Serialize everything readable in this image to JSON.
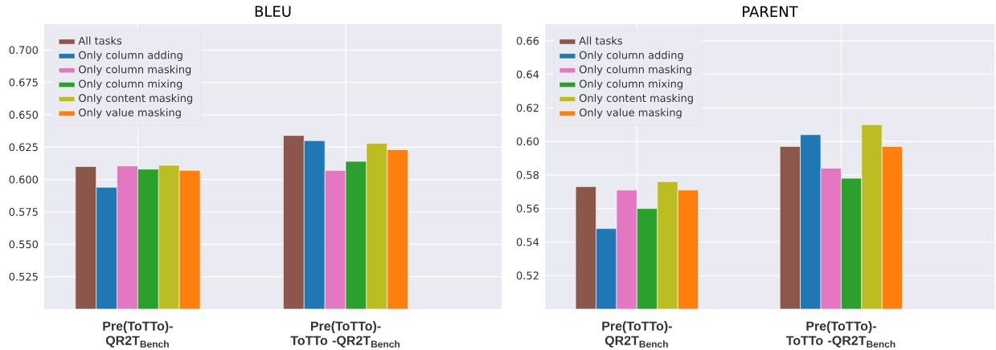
{
  "chart_data": [
    {
      "type": "bar",
      "title": "BLEU",
      "categories": [
        "Pre(ToTTo)- QR2T$_{Bench}$",
        "Pre(ToTTo)-ToTTo -QR2T$_{Bench}$"
      ],
      "ylim": [
        0.5,
        0.72
      ],
      "yticks": [
        0.525,
        {
          "value": 0.55,
          "label": "0.550"
        },
        0.575,
        {
          "value": 0.6,
          "label": "0.600"
        },
        0.625,
        {
          "value": 0.65,
          "label": "0.650"
        },
        0.675,
        {
          "value": 0.7,
          "label": "0.700"
        }
      ],
      "grid": true,
      "legend": "top left",
      "series": [
        {
          "name": "All tasks",
          "color": "#8c564b",
          "values": [
            0.61,
            0.634
          ]
        },
        {
          "name": "Only column adding",
          "color": "#1f77b4",
          "values": [
            0.594,
            0.63
          ]
        },
        {
          "name": "Only column masking",
          "color": "#e377c2",
          "values": [
            0.6105,
            0.607
          ]
        },
        {
          "name": "Only column mixing",
          "color": "#2ca02c",
          "values": [
            0.608,
            0.614
          ]
        },
        {
          "name": "Only content masking",
          "color": "#bcbd22",
          "values": [
            0.611,
            0.628
          ]
        },
        {
          "name": "Only value masking",
          "color": "#ff7f0e",
          "values": [
            0.607,
            0.623
          ]
        }
      ]
    },
    {
      "type": "bar",
      "title": "PARENT",
      "categories": [
        "Pre(ToTTo)- QR2T$_{Bench}$",
        "Pre(ToTTo)-ToTTo -QR2T$_{Bench}$"
      ],
      "ylim": [
        0.5,
        0.67
      ],
      "yticks": [
        0.52,
        0.54,
        0.56,
        0.58,
        {
          "value": 0.6,
          "label": "0.60"
        },
        0.62,
        0.64,
        0.66
      ],
      "grid": true,
      "legend": "top left",
      "series": [
        {
          "name": "All tasks",
          "color": "#8c564b",
          "values": [
            0.573,
            0.597
          ]
        },
        {
          "name": "Only column adding",
          "color": "#1f77b4",
          "values": [
            0.548,
            0.604
          ]
        },
        {
          "name": "Only column masking",
          "color": "#e377c2",
          "values": [
            0.571,
            0.584
          ]
        },
        {
          "name": "Only column mixing",
          "color": "#2ca02c",
          "values": [
            0.56,
            0.578
          ]
        },
        {
          "name": "Only content masking",
          "color": "#bcbd22",
          "values": [
            0.576,
            0.61
          ]
        },
        {
          "name": "Only value masking",
          "color": "#ff7f0e",
          "values": [
            0.571,
            0.597
          ]
        }
      ]
    }
  ]
}
